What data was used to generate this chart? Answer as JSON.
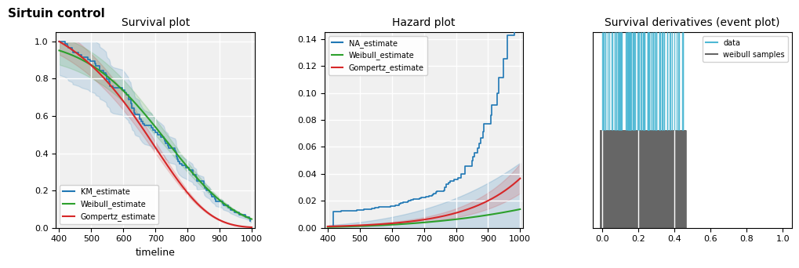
{
  "title": "Sirtuin control",
  "subplot1_title": "Survival plot",
  "subplot2_title": "Hazard plot",
  "subplot3_title": "Survival derivatives (event plot)",
  "xlabel1": "timeline",
  "xlim1": [
    390,
    1010
  ],
  "ylim1": [
    0.0,
    1.05
  ],
  "xlim2": [
    390,
    1010
  ],
  "ylim2": [
    0.0,
    0.145
  ],
  "xlim3": [
    -0.05,
    1.05
  ],
  "km_color": "#1f77b4",
  "weibull_color": "#2ca02c",
  "gompertz_color": "#d62728",
  "na_color": "#1f77b4",
  "data_color": "#4db8d4",
  "weibull_sample_color": "#666666",
  "ci_alpha": 0.15,
  "bg_color": "#f0f0f0",
  "grid_color": "white"
}
